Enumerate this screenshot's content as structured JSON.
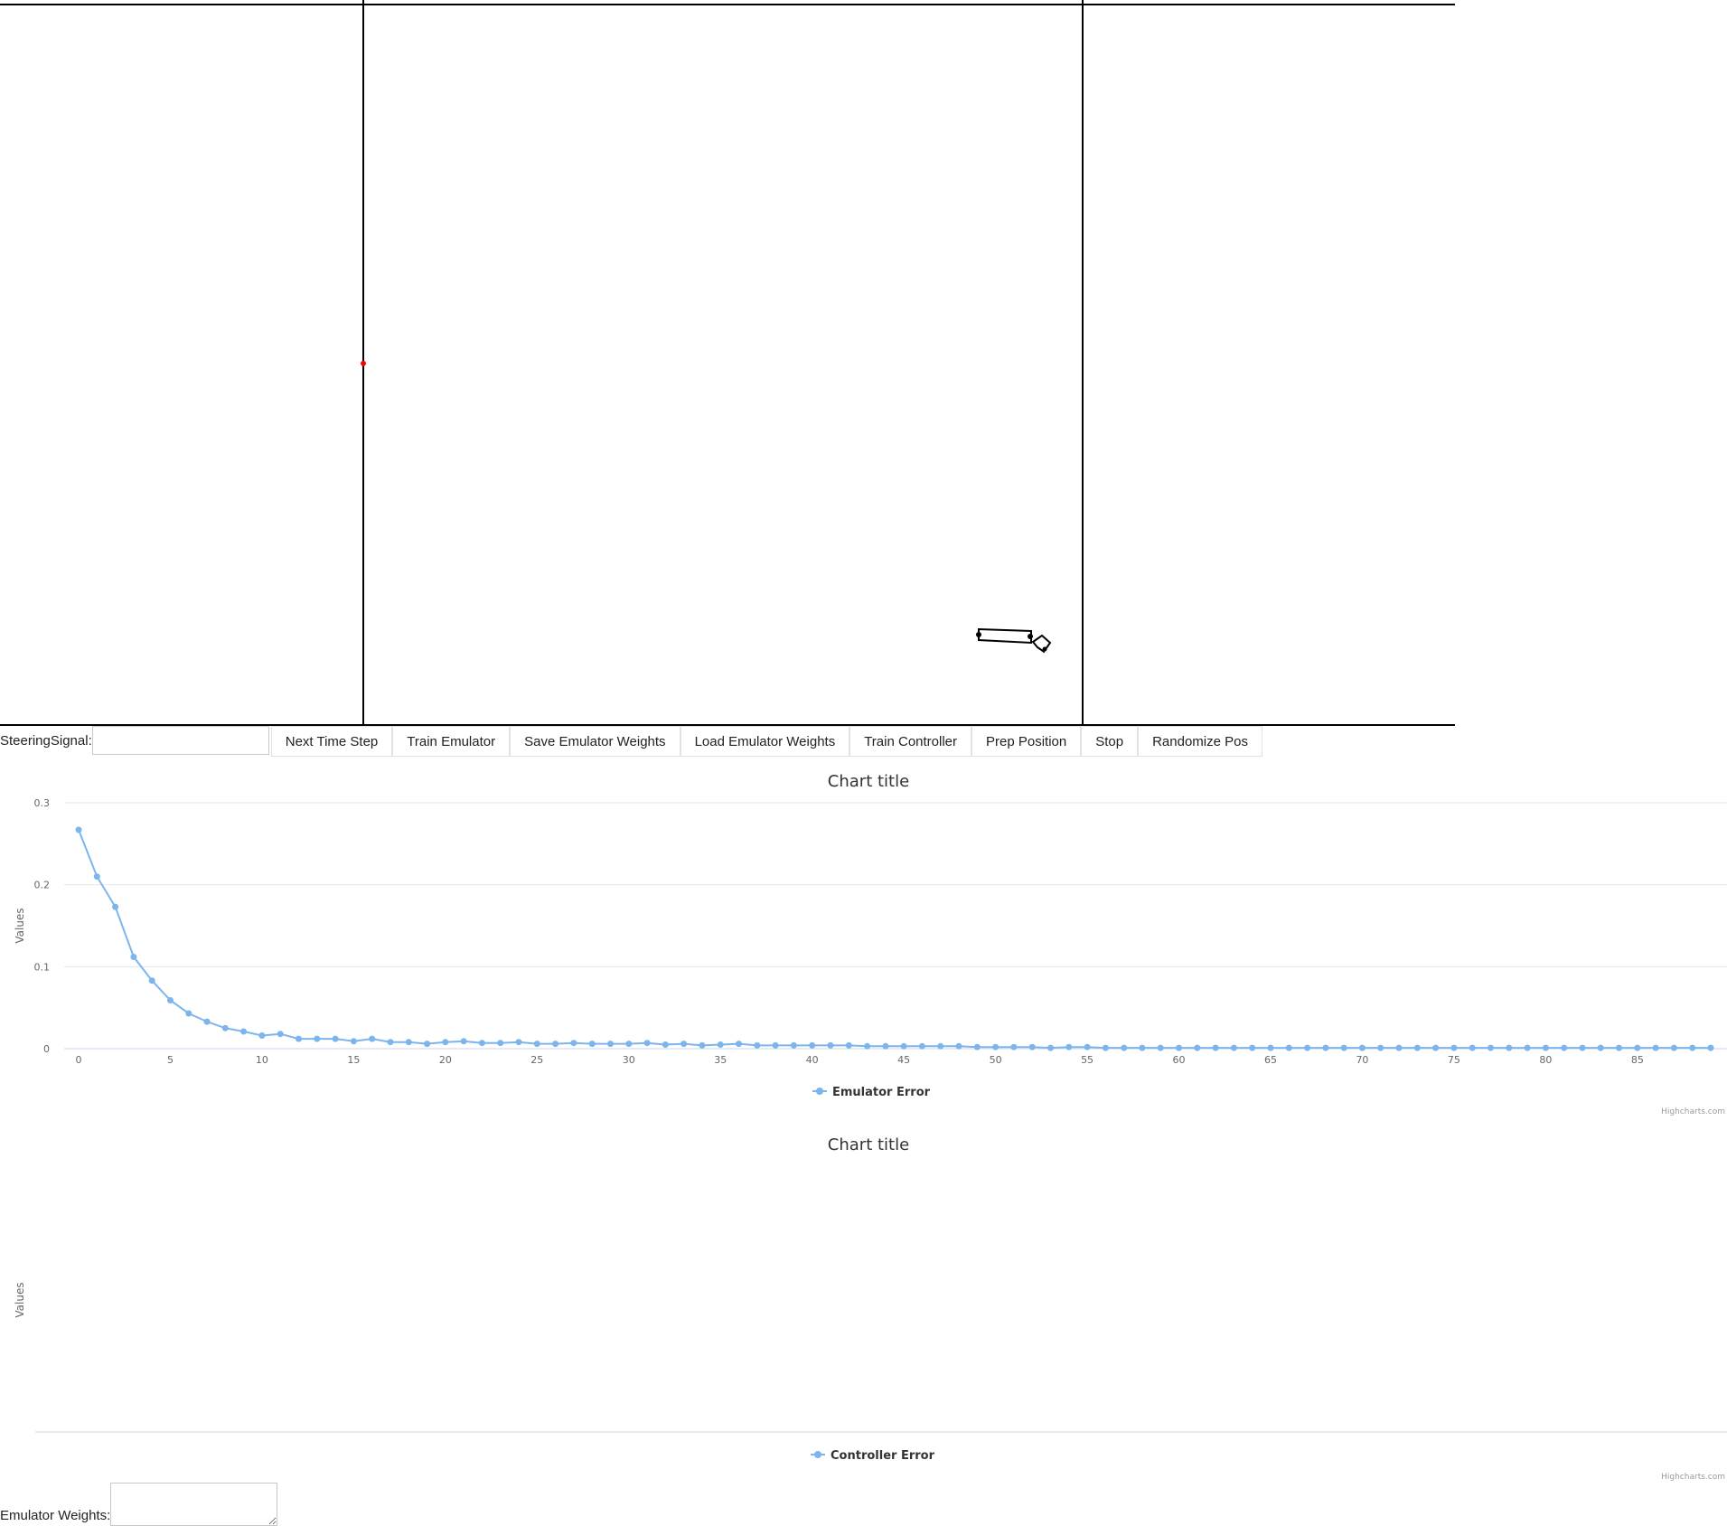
{
  "controls": {
    "steering_label": "SteeringSignal:",
    "steering_value": "",
    "buttons": [
      {
        "id": "next-time-step",
        "label": "Next Time Step"
      },
      {
        "id": "train-emulator",
        "label": "Train Emulator"
      },
      {
        "id": "save-emulator-weights",
        "label": "Save Emulator Weights"
      },
      {
        "id": "load-emulator-weights",
        "label": "Load Emulator Weights"
      },
      {
        "id": "train-controller",
        "label": "Train Controller"
      },
      {
        "id": "prep-position",
        "label": "Prep Position"
      },
      {
        "id": "stop",
        "label": "Stop"
      },
      {
        "id": "randomize-pos",
        "label": "Randomize Pos"
      }
    ]
  },
  "weights": {
    "label": "Emulator Weights:",
    "value": ""
  },
  "colors": {
    "series": "#7cb5ec",
    "target_dot": "#ff0000",
    "grid": "#e6e6e6",
    "axis_line": "#ccd6eb"
  },
  "chart_data": [
    {
      "type": "line",
      "title": "Chart title",
      "ylabel": "Values",
      "xlabel": "",
      "ylim": [
        0,
        0.3
      ],
      "yticks": [
        "0",
        "0.1",
        "0.2",
        "0.3"
      ],
      "xticks": [
        "0",
        "5",
        "10",
        "15",
        "20",
        "25",
        "30",
        "35",
        "40",
        "45",
        "50",
        "55",
        "60",
        "65",
        "70",
        "75",
        "80",
        "85"
      ],
      "xlim": [
        0,
        89
      ],
      "series": [
        {
          "name": "Emulator Error",
          "values": [
            0.267,
            0.21,
            0.173,
            0.112,
            0.083,
            0.059,
            0.043,
            0.033,
            0.025,
            0.021,
            0.016,
            0.018,
            0.012,
            0.012,
            0.012,
            0.009,
            0.012,
            0.008,
            0.008,
            0.006,
            0.008,
            0.009,
            0.007,
            0.007,
            0.008,
            0.006,
            0.006,
            0.007,
            0.006,
            0.006,
            0.006,
            0.007,
            0.005,
            0.006,
            0.004,
            0.005,
            0.006,
            0.004,
            0.004,
            0.004,
            0.004,
            0.004,
            0.004,
            0.003,
            0.003,
            0.003,
            0.003,
            0.003,
            0.003,
            0.002,
            0.002,
            0.002,
            0.002,
            0.001,
            0.002,
            0.002,
            0.001,
            0.001,
            0.001,
            0.001,
            0.001,
            0.001,
            0.001,
            0.001,
            0.001,
            0.001,
            0.001,
            0.001,
            0.001,
            0.001,
            0.001,
            0.001,
            0.001,
            0.001,
            0.001,
            0.001,
            0.001,
            0.001,
            0.001,
            0.001,
            0.001,
            0.001,
            0.001,
            0.001,
            0.001,
            0.001,
            0.001,
            0.001,
            0.001,
            0.001
          ]
        }
      ],
      "legend": "bottom-center",
      "credits": "Highcharts.com",
      "grid": true
    },
    {
      "type": "line",
      "title": "Chart title",
      "ylabel": "Values",
      "xlabel": "",
      "series": [
        {
          "name": "Controller Error",
          "values": []
        }
      ],
      "legend": "bottom-center",
      "credits": "Highcharts.com",
      "grid": false
    }
  ]
}
